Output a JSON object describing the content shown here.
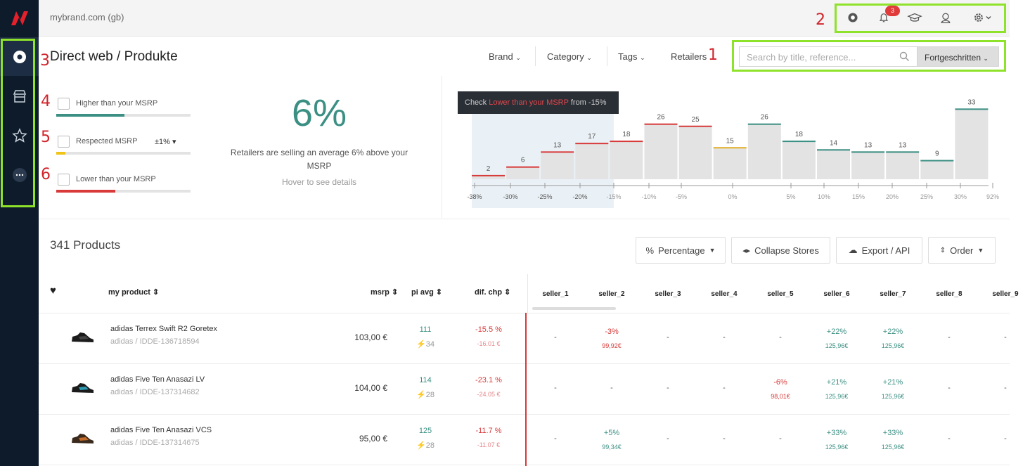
{
  "colors": {
    "sidebar": "#0d1b2a",
    "accent_green": "#3b8f83",
    "red": "#d83a3a",
    "highlight": "#8fe22a",
    "brand_red": "#e4202b"
  },
  "topbar": {
    "domain": "mybrand.com (gb)",
    "notification_count": "3"
  },
  "annotations": [
    "1",
    "2",
    "3",
    "4",
    "5",
    "6"
  ],
  "header": {
    "title": "Direct web / Produkte",
    "filters": [
      "Brand",
      "Category",
      "Tags",
      "Retailers"
    ],
    "search_placeholder": "Search by title, reference...",
    "advanced": "Fortgeschritten"
  },
  "msrp_filters": [
    {
      "label": "Higher than your MSRP",
      "fill": 0.51,
      "color": "#3b8f83"
    },
    {
      "label": "Respected MSRP",
      "fill": 0.07,
      "color": "#f0c417",
      "tolerance": "±1%"
    },
    {
      "label": "Lower than your MSRP",
      "fill": 0.44,
      "color": "#d83a3a"
    }
  ],
  "summary": {
    "percent": "6%",
    "text": "Retailers are selling an average 6% above your MSRP",
    "hint": "Hover to see details"
  },
  "tooltip": {
    "prefix": "Check",
    "highlight": "Lower than your MSRP",
    "suffix": "from -15%"
  },
  "chart_data": {
    "type": "bar",
    "values": [
      2,
      6,
      13,
      17,
      18,
      26,
      25,
      15,
      26,
      18,
      14,
      13,
      13,
      9,
      33
    ],
    "colors": [
      "red",
      "red",
      "red",
      "red",
      "red",
      "red",
      "red",
      "yellow",
      "green",
      "green",
      "green",
      "green",
      "green",
      "green",
      "green"
    ],
    "x_ticks": [
      "-38%",
      "-30%",
      "-25%",
      "-20%",
      "-15%",
      "-10%",
      "-5%",
      "0%",
      "5%",
      "10%",
      "15%",
      "20%",
      "25%",
      "30%",
      "92%"
    ],
    "highlighted_range": "-38% to -15%"
  },
  "products": {
    "count_label": "341 Products",
    "buttons": [
      "Percentage",
      "Collapse Stores",
      "Export / API",
      "Order"
    ],
    "columns": {
      "product": "my product",
      "msrp": "msrp",
      "avg": "pi avg",
      "dif": "dif. chp"
    },
    "sellers": [
      "seller_1",
      "seller_2",
      "seller_3",
      "seller_4",
      "seller_5",
      "seller_6",
      "seller_7",
      "seller_8",
      "seller_9"
    ],
    "rows": [
      {
        "name": "adidas Terrex Swift R2 Goretex",
        "ref": "adidas / IDDE-136718594",
        "msrp": "103,00 €",
        "avg": "111",
        "count": "34",
        "dif": "-15.5 %",
        "dif_abs": "-16.01 €",
        "cells": [
          [
            "-",
            ""
          ],
          [
            "-3%",
            "99,92€"
          ],
          [
            "-",
            ""
          ],
          [
            "-",
            ""
          ],
          [
            "-",
            ""
          ],
          [
            "+22%",
            "125,96€"
          ],
          [
            "+22%",
            "125,96€"
          ],
          [
            "-",
            ""
          ],
          [
            "-",
            ""
          ]
        ]
      },
      {
        "name": "adidas Five Ten Anasazi LV",
        "ref": "adidas / IDDE-137314682",
        "msrp": "104,00 €",
        "avg": "114",
        "count": "28",
        "dif": "-23.1 %",
        "dif_abs": "-24.05 €",
        "cells": [
          [
            "-",
            ""
          ],
          [
            "-",
            ""
          ],
          [
            "-",
            ""
          ],
          [
            "-",
            ""
          ],
          [
            "-6%",
            "98,01€"
          ],
          [
            "+21%",
            "125,96€"
          ],
          [
            "+21%",
            "125,96€"
          ],
          [
            "-",
            ""
          ],
          [
            "-",
            ""
          ]
        ]
      },
      {
        "name": "adidas Five Ten Anasazi VCS",
        "ref": "adidas / IDDE-137314675",
        "msrp": "95,00 €",
        "avg": "125",
        "count": "28",
        "dif": "-11.7 %",
        "dif_abs": "-11.07 €",
        "cells": [
          [
            "-",
            ""
          ],
          [
            "+5%",
            "99,34€"
          ],
          [
            "-",
            ""
          ],
          [
            "-",
            ""
          ],
          [
            "-",
            ""
          ],
          [
            "+33%",
            "125,96€"
          ],
          [
            "+33%",
            "125,96€"
          ],
          [
            "-",
            ""
          ],
          [
            "-",
            ""
          ]
        ]
      }
    ]
  }
}
